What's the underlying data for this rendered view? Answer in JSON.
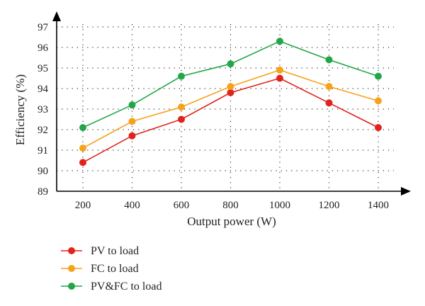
{
  "chart_data": {
    "type": "line",
    "xlabel": "Output power (W)",
    "ylabel": "Efficiency (%)",
    "categories": [
      200,
      400,
      600,
      800,
      1000,
      1200,
      1400
    ],
    "x_ticks": [
      "200",
      "400",
      "600",
      "800",
      "1000",
      "1200",
      "1400"
    ],
    "y_ticks": [
      "89",
      "90",
      "91",
      "92",
      "93",
      "94",
      "95",
      "96",
      "97"
    ],
    "ylim": [
      89,
      97
    ],
    "grid": true,
    "legend_position": "bottom-left",
    "series": [
      {
        "name": "PV to load",
        "color": "#e0241b",
        "values": [
          90.4,
          91.7,
          92.5,
          93.8,
          94.5,
          93.3,
          92.1
        ]
      },
      {
        "name": "FC to load",
        "color": "#f7a21b",
        "values": [
          91.1,
          92.4,
          93.1,
          94.1,
          94.9,
          94.1,
          93.4
        ]
      },
      {
        "name": "PV&FC to load",
        "color": "#23a64a",
        "values": [
          92.1,
          93.2,
          94.6,
          95.2,
          96.3,
          95.4,
          94.6
        ]
      }
    ]
  }
}
